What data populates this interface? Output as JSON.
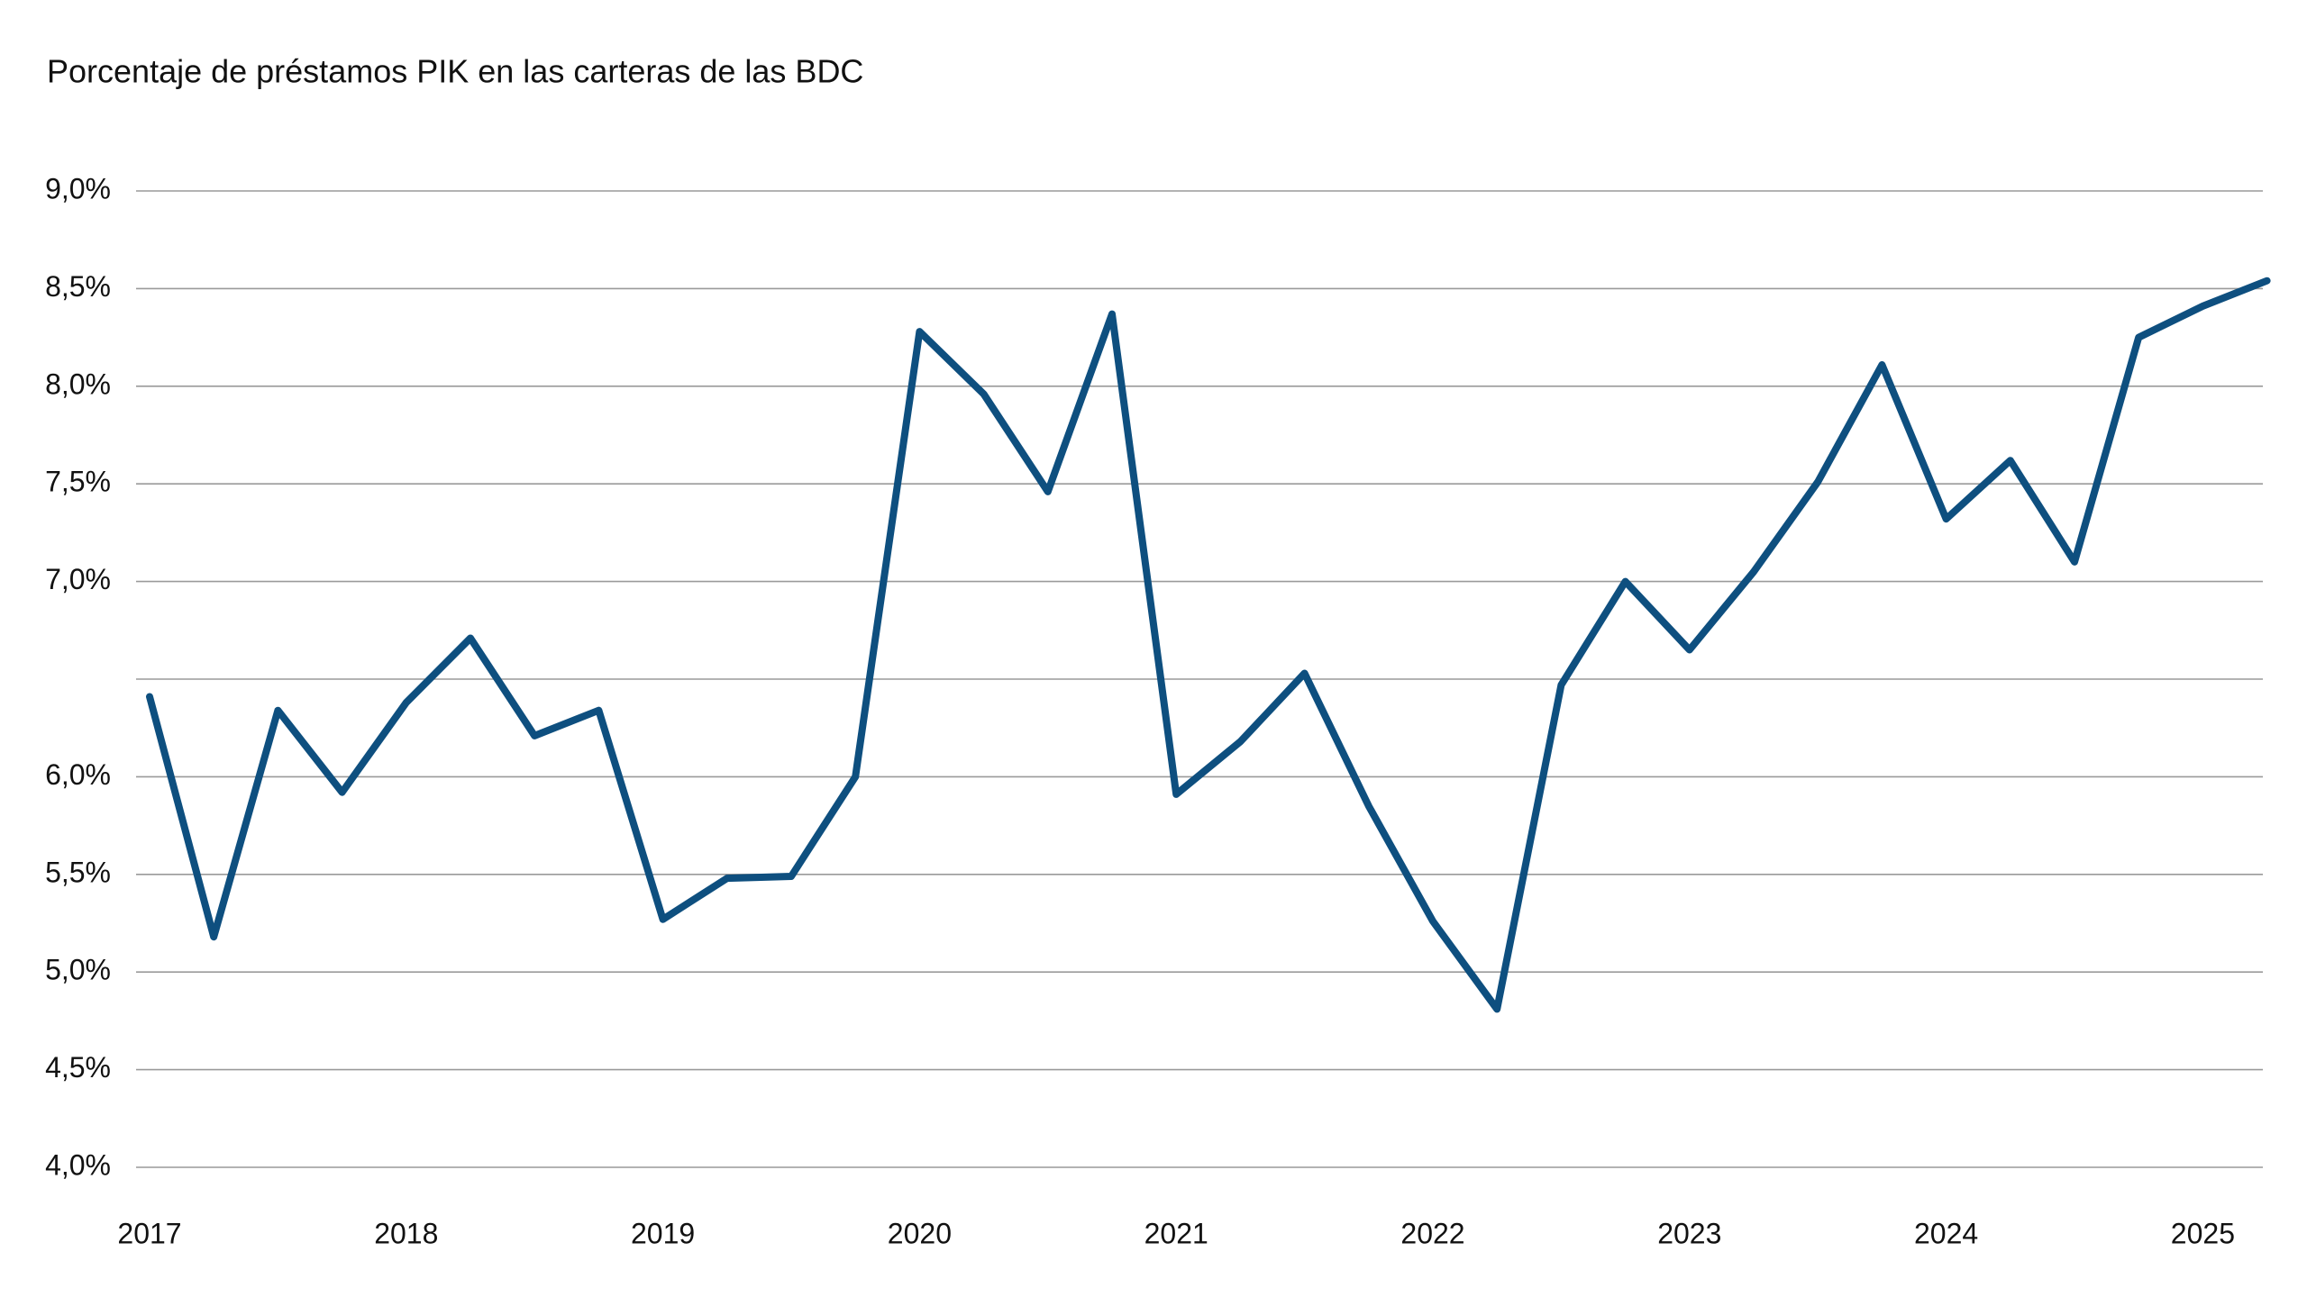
{
  "chart_data": {
    "type": "line",
    "title": "Porcentaje de préstamos PIK en las carteras de las BDC",
    "categories": [
      "2017",
      null,
      null,
      null,
      "2018",
      null,
      null,
      null,
      "2019",
      null,
      null,
      null,
      "2020",
      null,
      null,
      null,
      "2021",
      null,
      null,
      null,
      "2022",
      null,
      null,
      null,
      "2023",
      null,
      null,
      null,
      "2024",
      null,
      null,
      null,
      "2025",
      null
    ],
    "series": [
      {
        "name": "PIK",
        "color": "#0e4f7f",
        "values": [
          6.41,
          5.18,
          6.34,
          5.92,
          6.38,
          6.71,
          6.21,
          6.34,
          5.27,
          5.48,
          5.49,
          6.0,
          8.28,
          7.96,
          7.46,
          8.37,
          5.91,
          6.18,
          6.53,
          5.85,
          5.26,
          4.81,
          6.47,
          7.0,
          6.65,
          7.05,
          7.51,
          8.11,
          7.32,
          7.62,
          7.1,
          8.25,
          8.41,
          8.54
        ]
      }
    ],
    "ylim": [
      4.0,
      9.0
    ],
    "yticks": [
      {
        "value": 4.0,
        "label": "4,0%"
      },
      {
        "value": 4.5,
        "label": "4,5%"
      },
      {
        "value": 5.0,
        "label": "5,0%"
      },
      {
        "value": 5.5,
        "label": "5,5%"
      },
      {
        "value": 6.0,
        "label": "6,0%"
      },
      {
        "value": 6.5,
        "label": null
      },
      {
        "value": 7.0,
        "label": "7,0%"
      },
      {
        "value": 7.5,
        "label": "7,5%"
      },
      {
        "value": 8.0,
        "label": "8,0%"
      },
      {
        "value": 8.5,
        "label": "8,5%"
      },
      {
        "value": 9.0,
        "label": "9,0%"
      }
    ],
    "grid": true
  }
}
